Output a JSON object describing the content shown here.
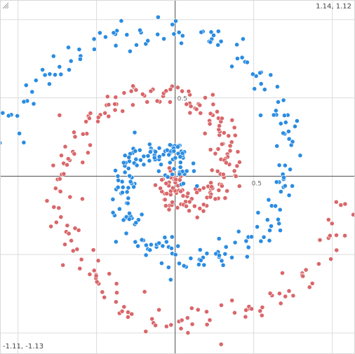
{
  "chart_data": {
    "type": "scatter",
    "plot_kind": "two-class interleaved spiral",
    "xlim": [
      -1.11,
      1.14
    ],
    "ylim": [
      -1.13,
      1.12
    ],
    "grid": true,
    "grid_step": 0.5,
    "axes_through_origin": true,
    "tick_labels": [
      {
        "text": "0.5",
        "axis": "y",
        "value": 0.5
      },
      {
        "text": "0.5",
        "axis": "x",
        "value": 0.5
      }
    ],
    "corner_labels": {
      "top_right": "1.14, 1.12",
      "bottom_left": "-1.11, -1.13"
    },
    "series": [
      {
        "color": "#d9676a",
        "spiral": {
          "start_angle_deg": 225,
          "turns": 1.35,
          "radius_start": 0.02,
          "radius_end": 1.1,
          "points": 300,
          "jitter": 0.05
        }
      },
      {
        "color": "#2a8ce2",
        "spiral": {
          "start_angle_deg": 45,
          "turns": 1.35,
          "radius_start": 0.02,
          "radius_end": 1.1,
          "points": 300,
          "jitter": 0.05
        }
      }
    ]
  },
  "colors": {
    "grid": "#dcdcdc",
    "axis": "#4d4d4d",
    "point_stroke": "#ffffff"
  },
  "icons": {
    "resize": "resize-grip-icon"
  }
}
